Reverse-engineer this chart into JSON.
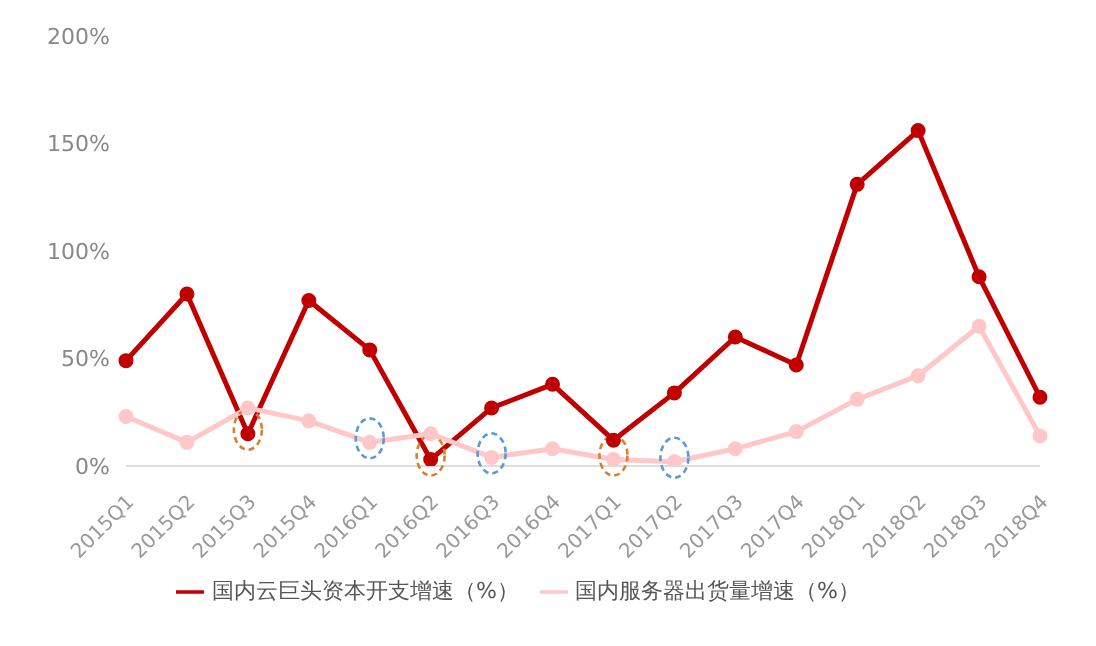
{
  "chart_data": {
    "type": "line",
    "categories": [
      "2015Q1",
      "2015Q2",
      "2015Q3",
      "2015Q4",
      "2016Q1",
      "2016Q2",
      "2016Q3",
      "2016Q4",
      "2017Q1",
      "2017Q2",
      "2017Q3",
      "2017Q4",
      "2018Q1",
      "2018Q2",
      "2018Q3",
      "2018Q4"
    ],
    "series": [
      {
        "name": "国内云巨头资本开支增速（%）",
        "color": "#c00000",
        "values": [
          49,
          80,
          15,
          77,
          54,
          3,
          27,
          38,
          12,
          34,
          60,
          47,
          131,
          156,
          88,
          32
        ]
      },
      {
        "name": "国内服务器出货量增速（%）",
        "color": "#ffc7c7",
        "values": [
          23,
          11,
          27,
          21,
          11,
          15,
          4,
          8,
          3,
          2,
          8,
          16,
          31,
          42,
          65,
          14
        ]
      }
    ],
    "ylim": [
      0,
      200
    ],
    "yticks": [
      {
        "value": 0,
        "label": "0%"
      },
      {
        "value": 50,
        "label": "50%"
      },
      {
        "value": 100,
        "label": "100%"
      },
      {
        "value": 150,
        "label": "150%"
      },
      {
        "value": 200,
        "label": "200%"
      }
    ],
    "grid": false,
    "legend": "bottom",
    "marker": "circle",
    "line_style": "solid"
  }
}
